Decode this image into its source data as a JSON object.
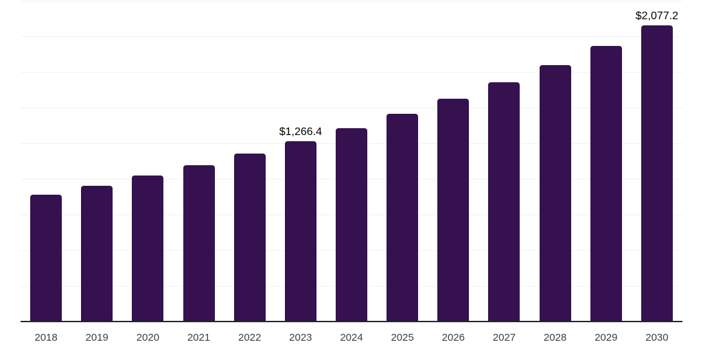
{
  "chart_data": {
    "type": "bar",
    "title": "",
    "xlabel": "",
    "ylabel": "",
    "categories": [
      "2018",
      "2019",
      "2020",
      "2021",
      "2022",
      "2023",
      "2024",
      "2025",
      "2026",
      "2027",
      "2028",
      "2029",
      "2030"
    ],
    "values": [
      889,
      953,
      1022,
      1097,
      1177,
      1266.4,
      1357,
      1456,
      1563,
      1678,
      1800,
      1932,
      2077.2
    ],
    "data_labels": [
      {
        "category": "2023",
        "text": "$1,266.4"
      },
      {
        "category": "2030",
        "text": "$2,077.2"
      }
    ],
    "ylim": [
      0,
      2250
    ],
    "gridline_step": 250,
    "grid": true,
    "legend": "none",
    "y_tick_labels_visible": false,
    "colors": {
      "bar": "#36114f",
      "gridline": "#f2f2f4",
      "axis_line": "#262626",
      "tick_label": "#3d3d3d",
      "data_label": "#000000",
      "background": "#ffffff"
    }
  }
}
